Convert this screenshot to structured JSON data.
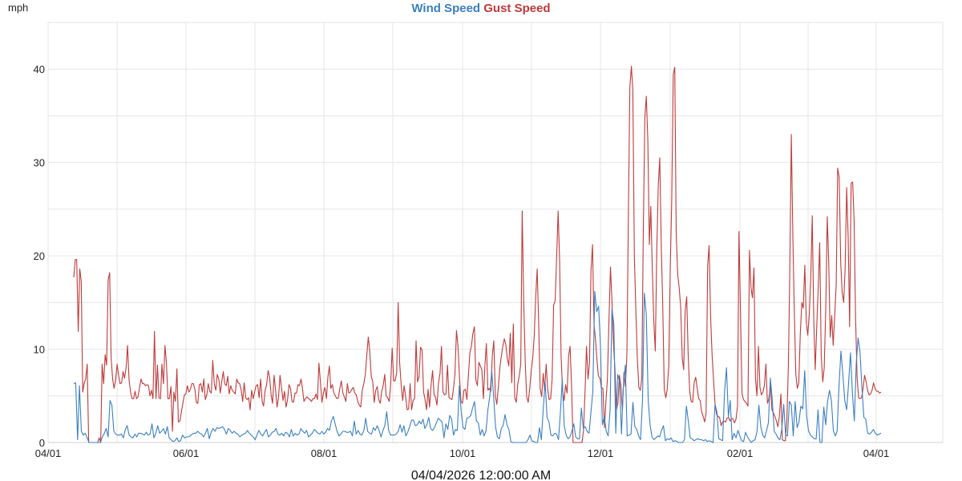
{
  "chart_data": {
    "type": "line",
    "y_unit": "mph",
    "ylim": [
      0,
      45
    ],
    "y_ticks": [
      0,
      10,
      20,
      30,
      40
    ],
    "x_tick_labels": [
      "04/01",
      "06/01",
      "08/01",
      "10/01",
      "12/01",
      "02/01",
      "04/01"
    ],
    "grid": true,
    "legend_position": "top-center",
    "footer_date": "04/04/2026 12:00:00 AM",
    "series": [
      {
        "name": "Wind Speed",
        "color": "#3a7fc1",
        "values": [
          6.3,
          6.4,
          0.3,
          6.1,
          1.2,
          0.8,
          1.0,
          0.5,
          0,
          0,
          0,
          0,
          0,
          0,
          0,
          0.6,
          1.0,
          1.5,
          0.6,
          4.5,
          4.0,
          1.2,
          0.9,
          0.8,
          0.8,
          0.9,
          0.5,
          1.4,
          1.8,
          0.8,
          0.6,
          0.5,
          0.9,
          0.6,
          1.0,
          1.0,
          0.9,
          0.8,
          1.1,
          0.8,
          0.9,
          2.0,
          0.5,
          1.0,
          1.8,
          1.0,
          1.2,
          1.5,
          0.9,
          1.7,
          0.5,
          0.3,
          0.1,
          0.2,
          0.5,
          0.1,
          0.2,
          0.8,
          0.5,
          0.6,
          0.6,
          0.7,
          0.9,
          1.0,
          1.0,
          1.2,
          1.0,
          0.9,
          0.6,
          1.0,
          1.5,
          0.4,
          1.1,
          1.5,
          1.2,
          1.6,
          1.5,
          1.6,
          1.7,
          1.4,
          0.9,
          1.5,
          1.3,
          1.0,
          1.2,
          1.0,
          0.9,
          0.6,
          0.8,
          0.9,
          1.0,
          1.3,
          1.0,
          0.8,
          0.6,
          0.3,
          0.8,
          1.3,
          0.9,
          0.7,
          1.1,
          1.4,
          0.6,
          0.8,
          1.1,
          1.2,
          1.5,
          0.9,
          0.8,
          1.0,
          0.7,
          1.1,
          1.0,
          0.6,
          1.4,
          0.7,
          1.0,
          0.8,
          0.9,
          1.5,
          1.2,
          1.0,
          1.3,
          0.6,
          0.8,
          1.0,
          1.4,
          1.2,
          1.0,
          0.9,
          1.2,
          0.9,
          1.1,
          1.5,
          1.3,
          2.3,
          2.8,
          2.0,
          1.2,
          0.7,
          0.9,
          1.2,
          1.2,
          1.1,
          1.1,
          1.2,
          0.7,
          2.3,
          0.9,
          1.3,
          0.9,
          0.8,
          1.3,
          2.6,
          1.2,
          1.0,
          0.9,
          1.6,
          1.3,
          1.8,
          1.3,
          0.6,
          1.3,
          1.8,
          3.3,
          1.3,
          0.8,
          0.8,
          0.8,
          0.9,
          1.2,
          1.9,
          1.1,
          1.8,
          0.7,
          1.1,
          1.7,
          2.4,
          2.4,
          1.8,
          1.9,
          2.3,
          2.0,
          2.5,
          1.5,
          1.9,
          2.7,
          1.5,
          1.3,
          1.6,
          2.1,
          2.6,
          2.4,
          2.2,
          0.5,
          2.0,
          1.4,
          2.9,
          2.5,
          0.8,
          1.4,
          1.3,
          6.1,
          3.3,
          1.6,
          1.4,
          2.6,
          2.7,
          2.9,
          3.7,
          4.4,
          2.3,
          2.1,
          0.8,
          1.4,
          0.7,
          1.2,
          3.5,
          5.0,
          7.7,
          5.0,
          1.7,
          0.6,
          0.4,
          1.5,
          1.8,
          3.0,
          1.9,
          1.4,
          0.1,
          0,
          0,
          0,
          0,
          0,
          0,
          0,
          0,
          0.3,
          0.8,
          0.2,
          0.1,
          0,
          0,
          1.6,
          0.3,
          3.5,
          6.5,
          2.7,
          2.2,
          0.8,
          0.7,
          1.0,
          0.9,
          0.3,
          3.3,
          6.8,
          1.8,
          0.8,
          0.4,
          0.6,
          1.2,
          2.0,
          0.6,
          0.4,
          0.4,
          3.7,
          1.5,
          1.7,
          1.2,
          1.0,
          3.2,
          5.5,
          16.2,
          14.0,
          14.6,
          10.4,
          1.9,
          2.8,
          1.2,
          0.7,
          3.4,
          14.3,
          12.7,
          1.0,
          7.3,
          6.5,
          0.9,
          6.1,
          8.3,
          0.7,
          0.8,
          0.9,
          4.3,
          1.7,
          1.4,
          0.7,
          0.3,
          4.4,
          16.0,
          13.7,
          4.5,
          1.9,
          0.6,
          0.3,
          0.5,
          0.7,
          0.6,
          1.3,
          1.8,
          0.2,
          0.4,
          0.3,
          0.5,
          0.1,
          0.2,
          0.1,
          0,
          0,
          0,
          0.3,
          3.9,
          2.3,
          0.5,
          0.4,
          0.2,
          0.3,
          0.4,
          0.3,
          0.3,
          0.2,
          0.3,
          0.1,
          0.2,
          0.1,
          0,
          4.1,
          3.3,
          0.4,
          0.3,
          0.2,
          5.4,
          8.0,
          2.8,
          4.5,
          0.3,
          1.0,
          0.5,
          1.3,
          0.7,
          0.2,
          0.1,
          1.1,
          0.6,
          0.3,
          0,
          0.2,
          0.3,
          1.2,
          4.0,
          1.7,
          0.8,
          0.5,
          1.3,
          2.1,
          6.9,
          4.6,
          1.2,
          0.9,
          0.5,
          0.3,
          1.4,
          4.1,
          0.8,
          0.7,
          4.4,
          4.0,
          0.7,
          4.4,
          1.6,
          2.2,
          3.9,
          3.6,
          7.7,
          2.8,
          1.3,
          0.8,
          0.6,
          0.4,
          0.4,
          3.5,
          0,
          0,
          3.8,
          1.9,
          4.4,
          5.6,
          4.5,
          1.3,
          0.7,
          1.2,
          6.1,
          9.8,
          7.3,
          4.5,
          3.5,
          6.3,
          9.6,
          5.3,
          2.3,
          8.5,
          11.2,
          9.7,
          5.8,
          2.7,
          2.5,
          1.0,
          0.9,
          1.1,
          1.4,
          1.0,
          0.8,
          0.9,
          1.0
        ]
      },
      {
        "name": "Gust Speed",
        "color": "#bf3a3a",
        "values": [
          17.7,
          19.6,
          19.6,
          11.9,
          18.6,
          17.3,
          5.4,
          6.4,
          6.8,
          8.4,
          0,
          0,
          0,
          0,
          0,
          0,
          0,
          0.5,
          0,
          8.4,
          6.3,
          9.4,
          8.3,
          17.4,
          18.2,
          9.1,
          6.8,
          5.8,
          6.7,
          8.4,
          7.2,
          6.3,
          6.4,
          7.6,
          6.9,
          8.0,
          10.4,
          6.7,
          5.4,
          4.7,
          4.7,
          5.5,
          4.7,
          4.9,
          5.9,
          6.8,
          6.3,
          6.3,
          6.1,
          6.2,
          6.1,
          5.0,
          5.6,
          4.7,
          11.9,
          4.7,
          8.3,
          4.8,
          4.7,
          8.4,
          6.3,
          10.4,
          8.5,
          4.7,
          4.7,
          6.0,
          1.2,
          5.4,
          4.4,
          7.9,
          2.2,
          2.3,
          3.3,
          4.2,
          5.1,
          5.2,
          6.1,
          5.4,
          5.7,
          6.3,
          6.3,
          5.7,
          4.3,
          4.2,
          6.2,
          6.3,
          5.4,
          6.8,
          4.6,
          5.1,
          6.3,
          5.5,
          5.3,
          8.8,
          6.3,
          5.6,
          7.3,
          6.8,
          5.3,
          6.5,
          7.6,
          6.3,
          6.1,
          7.1,
          5.2,
          6.1,
          5.6,
          5.4,
          5.2,
          6.8,
          6.4,
          6.3,
          5.6,
          4.4,
          6.4,
          4.8,
          4.6,
          4.8,
          3.5,
          5.6,
          4.7,
          5.4,
          6.1,
          6.2,
          4.8,
          6.8,
          4.4,
          3.9,
          5.6,
          6.2,
          7.7,
          7.0,
          5.1,
          4.2,
          7.2,
          5.6,
          3.8,
          4.9,
          7.2,
          5.8,
          4.5,
          5.5,
          3.8,
          4.6,
          6.2,
          5.8,
          4.4,
          4.3,
          5.3,
          5.3,
          6.2,
          6.1,
          6.8,
          5.8,
          4.4,
          4.7,
          4.9,
          4.7,
          4.6,
          4.4,
          4.7,
          4.7,
          5.2,
          4.6,
          8.5,
          6.5,
          4.3,
          5.3,
          5.9,
          4.7,
          7.0,
          8.2,
          5.8,
          6.2,
          5.3,
          5.0,
          4.7,
          4.8,
          5.8,
          6.6,
          5.3,
          4.9,
          4.4,
          6.3,
          5.3,
          5.4,
          5.7,
          5.9,
          5.3,
          5.1,
          4.4,
          4.0,
          3.8,
          5.6,
          6.3,
          7.2,
          9.3,
          11.3,
          9.8,
          7.1,
          6.5,
          4.3,
          5.6,
          6.0,
          4.6,
          4.2,
          5.5,
          6.1,
          7.3,
          5.0,
          4.8,
          4.4,
          6.2,
          10.1,
          6.6,
          6.6,
          7.5,
          15.0,
          8.6,
          6.2,
          4.5,
          6.1,
          4.9,
          3.5,
          3.6,
          6.3,
          3.5,
          4.5,
          4.7,
          10.9,
          6.5,
          7.1,
          10.2,
          9.9,
          5.4,
          4.6,
          3.5,
          5.7,
          3.8,
          6.1,
          7.7,
          5.2,
          4.8,
          4.0,
          6.4,
          7.4,
          10.3,
          5.4,
          5.1,
          5.2,
          8.3,
          4.8,
          4.7,
          4.6,
          5.8,
          7.3,
          12.0,
          10.3,
          7.1,
          4.4,
          4.2,
          5.6,
          5.7,
          4.6,
          7.2,
          9.7,
          10.3,
          11.7,
          12.4,
          6.7,
          6.1,
          8.6,
          8.2,
          7.8,
          4.7,
          8.1,
          10.6,
          5.6,
          5.8,
          5.5,
          9.3,
          10.9,
          5.0,
          4.1,
          5.9,
          8.0,
          9.2,
          10.3,
          11.1,
          10.5,
          9.0,
          8.2,
          11.7,
          6.4,
          12.7,
          4.8,
          4.3,
          6.3,
          7.1,
          8.4,
          24.8,
          15.0,
          8.6,
          4.9,
          4.3,
          5.8,
          7.7,
          9.0,
          11.4,
          15.5,
          18.6,
          12.6,
          5.8,
          4.9,
          7.4,
          5.6,
          8.4,
          5.8,
          4.6,
          4.7,
          6.8,
          14.7,
          15.2,
          19.7,
          24.8,
          19.4,
          9.3,
          5.5,
          4.5,
          6.2,
          5.3,
          9.3,
          10.3,
          6.0,
          0,
          0,
          0,
          0,
          0,
          0,
          0,
          1.3,
          5.5,
          10.3,
          6.8,
          8.6,
          18.4,
          21.2,
          12.6,
          11.1,
          8.8,
          7.1,
          6.9,
          5.9,
          5.8,
          1.6,
          4.5,
          6.8,
          13.0,
          18.8,
          15.3,
          10.6,
          7.9,
          3.5,
          4.2,
          7.2,
          6.1,
          3.5,
          7.5,
          6.0,
          9.4,
          24.0,
          38.1,
          40.3,
          37.7,
          19.9,
          14.1,
          9.0,
          5.9,
          5.6,
          6.9,
          23.1,
          34.8,
          37.1,
          32.4,
          21.2,
          25.3,
          18.5,
          13.1,
          9.8,
          20.7,
          27.4,
          30.5,
          20.9,
          14.7,
          5.7,
          4.8,
          5.7,
          8.2,
          18.7,
          25.9,
          39.4,
          40.2,
          22.4,
          18.0,
          16.5,
          14.5,
          9.1,
          7.8,
          14.1,
          15.6,
          9.5,
          5.5,
          4.4,
          4.3,
          6.4,
          7.0,
          5.9,
          4.7,
          4.5,
          3.3,
          2.8,
          2.2,
          3.2,
          18.9,
          21.1,
          13.5,
          9.3,
          6.7,
          4.1,
          3.0,
          2.8,
          2.7,
          1.8,
          2.2,
          2.3,
          2.2,
          2.6,
          2.7,
          2.3,
          2.6,
          2.5,
          2.1,
          2.5,
          3.9,
          22.6,
          14.0,
          5.2,
          4.6,
          4.4,
          4.2,
          3.9,
          20.6,
          16.6,
          15.5,
          18.7,
          6.8,
          5.0,
          10.3,
          5.9,
          5.1,
          5.4,
          6.1,
          8.4,
          4.2,
          4.7,
          6.3,
          3.5,
          3.2,
          2.8,
          2.3,
          1.7,
          2.8,
          5.2,
          0.3,
          0.2,
          0.2,
          2.4,
          8.1,
          18.4,
          33.0,
          22.1,
          14.1,
          7.3,
          5.8,
          6.4,
          11.7,
          15.0,
          14.4,
          19.0,
          12.9,
          11.5,
          13.7,
          17.8,
          24.3,
          13.1,
          7.8,
          12.4,
          16.7,
          21.4,
          9.3,
          6.5,
          8.0,
          14.1,
          24.2,
          19.5,
          11.3,
          13.6,
          10.4,
          13.6,
          16.9,
          29.4,
          28.4,
          19.3,
          16.1,
          15.0,
          18.5,
          27.3,
          22.0,
          12.4,
          27.8,
          27.9,
          23.8,
          13.1,
          6.9,
          4.8,
          4.7,
          4.8,
          5.8,
          7.2,
          6.5,
          5.6,
          5.1,
          5.2,
          5.6,
          6.4,
          5.8,
          5.5,
          5.5,
          5.3,
          5.4
        ]
      }
    ]
  }
}
